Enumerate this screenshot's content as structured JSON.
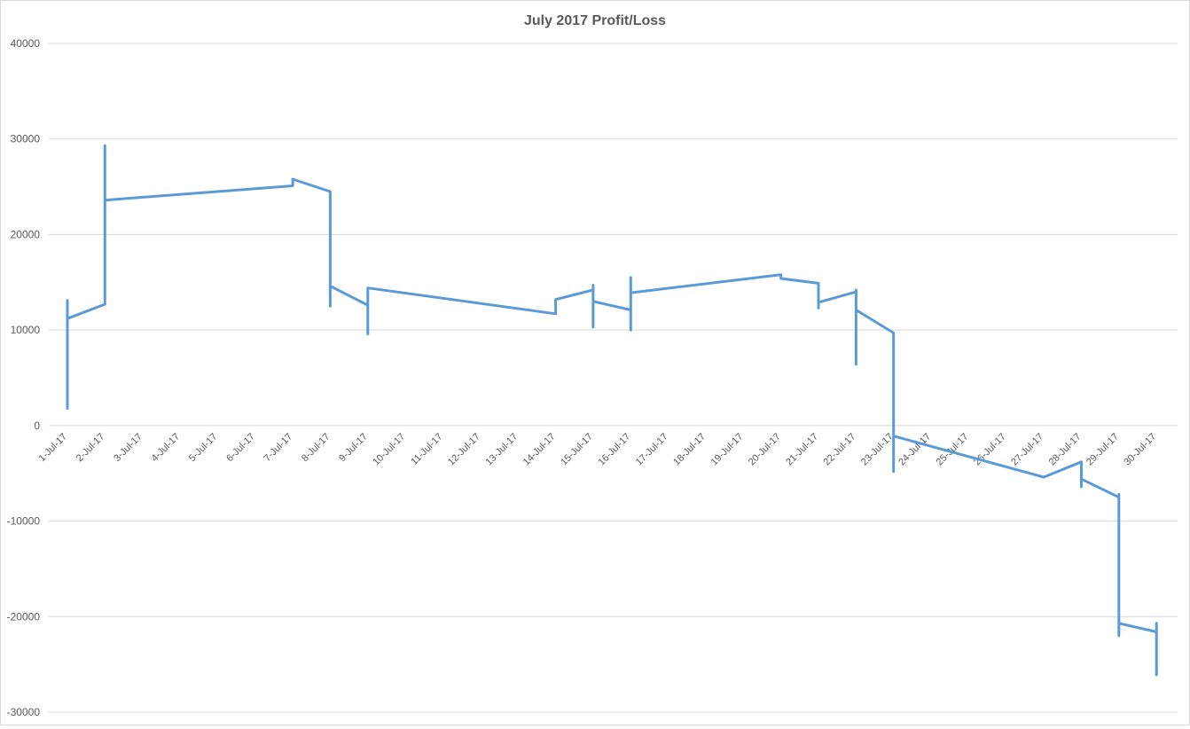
{
  "chart_data": {
    "type": "line",
    "title": "July 2017 Profit/Loss",
    "xlabel": "",
    "ylabel": "",
    "ylim": [
      -30000,
      40000
    ],
    "yticks": [
      -30000,
      -20000,
      -10000,
      0,
      10000,
      20000,
      30000,
      40000
    ],
    "categories": [
      "1-Jul-17",
      "2-Jul-17",
      "3-Jul-17",
      "4-Jul-17",
      "5-Jul-17",
      "6-Jul-17",
      "7-Jul-17",
      "8-Jul-17",
      "9-Jul-17",
      "10-Jul-17",
      "11-Jul-17",
      "12-Jul-17",
      "13-Jul-17",
      "14-Jul-17",
      "15-Jul-17",
      "16-Jul-17",
      "17-Jul-17",
      "18-Jul-17",
      "19-Jul-17",
      "20-Jul-17",
      "21-Jul-17",
      "22-Jul-17",
      "23-Jul-17",
      "24-Jul-17",
      "25-Jul-17",
      "26-Jul-17",
      "27-Jul-17",
      "28-Jul-17",
      "29-Jul-17",
      "30-Jul-17"
    ],
    "grid": true,
    "legend": "none",
    "line_color": "#5b9bd5",
    "series": [
      {
        "points": [
          [
            "1-Jul-17",
            1800
          ],
          [
            "1-Jul-17",
            13100
          ],
          [
            "1-Jul-17",
            11200
          ],
          [
            "2-Jul-17",
            12700
          ],
          [
            "2-Jul-17",
            29300
          ],
          [
            "2-Jul-17",
            23600
          ],
          [
            "7-Jul-17",
            25100
          ],
          [
            "7-Jul-17",
            25800
          ],
          [
            "8-Jul-17",
            24500
          ],
          [
            "8-Jul-17",
            12500
          ],
          [
            "8-Jul-17",
            14600
          ],
          [
            "9-Jul-17",
            12600
          ],
          [
            "9-Jul-17",
            9600
          ],
          [
            "9-Jul-17",
            14400
          ],
          [
            "14-Jul-17",
            11700
          ],
          [
            "14-Jul-17",
            13200
          ],
          [
            "15-Jul-17",
            14200
          ],
          [
            "15-Jul-17",
            14700
          ],
          [
            "15-Jul-17",
            10300
          ],
          [
            "15-Jul-17",
            13000
          ],
          [
            "16-Jul-17",
            12100
          ],
          [
            "16-Jul-17",
            15500
          ],
          [
            "16-Jul-17",
            10000
          ],
          [
            "16-Jul-17",
            13900
          ],
          [
            "20-Jul-17",
            15800
          ],
          [
            "20-Jul-17",
            15400
          ],
          [
            "21-Jul-17",
            14900
          ],
          [
            "21-Jul-17",
            12300
          ],
          [
            "21-Jul-17",
            12900
          ],
          [
            "22-Jul-17",
            14000
          ],
          [
            "22-Jul-17",
            14200
          ],
          [
            "22-Jul-17",
            6400
          ],
          [
            "22-Jul-17",
            12100
          ],
          [
            "23-Jul-17",
            9700
          ],
          [
            "23-Jul-17",
            -4800
          ],
          [
            "23-Jul-17",
            -1100
          ],
          [
            "27-Jul-17",
            -5400
          ],
          [
            "28-Jul-17",
            -3800
          ],
          [
            "28-Jul-17",
            -6400
          ],
          [
            "28-Jul-17",
            -5600
          ],
          [
            "29-Jul-17",
            -7500
          ],
          [
            "29-Jul-17",
            -7200
          ],
          [
            "29-Jul-17",
            -22000
          ],
          [
            "29-Jul-17",
            -20700
          ],
          [
            "30-Jul-17",
            -21600
          ],
          [
            "30-Jul-17",
            -20700
          ],
          [
            "30-Jul-17",
            -26100
          ]
        ]
      }
    ]
  }
}
